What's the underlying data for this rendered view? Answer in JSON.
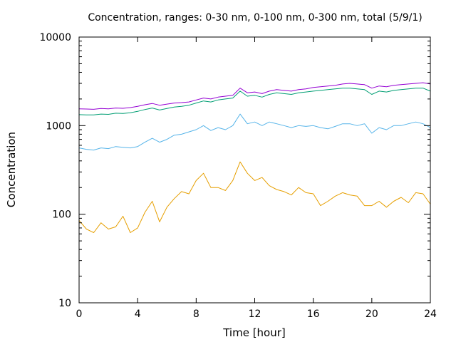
{
  "chart_data": {
    "type": "line",
    "title": "Concentration, ranges: 0-30 nm, 0-100 nm, 0-300 nm, total (5/9/1)",
    "xlabel": "Time [hour]",
    "ylabel": "Concentration",
    "xlim": [
      0,
      24
    ],
    "ylim": [
      10,
      10000
    ],
    "yscale": "log",
    "grid": false,
    "legend": "none",
    "xticks": [
      0,
      4,
      8,
      12,
      16,
      20,
      24
    ],
    "xtick_labels": [
      "0",
      "4",
      "8",
      "12",
      "16",
      "20",
      "24"
    ],
    "yticks": [
      10,
      100,
      1000,
      10000
    ],
    "ytick_labels": [
      "10",
      "100",
      "1000",
      "10000"
    ],
    "series": [
      {
        "color": "#9400d3",
        "x": [
          0,
          0.5,
          1,
          1.5,
          2,
          2.5,
          3,
          3.5,
          4,
          4.5,
          5,
          5.5,
          6,
          6.5,
          7,
          7.5,
          8,
          8.5,
          9,
          9.5,
          10,
          10.5,
          11,
          11.5,
          12,
          12.5,
          13,
          13.5,
          14,
          14.5,
          15,
          15.5,
          16,
          16.5,
          17,
          17.5,
          18,
          18.5,
          19,
          19.5,
          20,
          20.5,
          21,
          21.5,
          22,
          22.5,
          23,
          23.5,
          24
        ],
        "values": [
          1550,
          1540,
          1530,
          1560,
          1550,
          1580,
          1570,
          1600,
          1650,
          1720,
          1780,
          1700,
          1750,
          1800,
          1820,
          1850,
          1950,
          2050,
          2000,
          2100,
          2150,
          2200,
          2650,
          2350,
          2400,
          2300,
          2450,
          2550,
          2500,
          2450,
          2550,
          2600,
          2700,
          2750,
          2800,
          2850,
          2950,
          3000,
          2950,
          2900,
          2650,
          2800,
          2750,
          2850,
          2900,
          2950,
          3000,
          3050,
          2950
        ]
      },
      {
        "color": "#009e73",
        "x": [
          0,
          0.5,
          1,
          1.5,
          2,
          2.5,
          3,
          3.5,
          4,
          4.5,
          5,
          5.5,
          6,
          6.5,
          7,
          7.5,
          8,
          8.5,
          9,
          9.5,
          10,
          10.5,
          11,
          11.5,
          12,
          12.5,
          13,
          13.5,
          14,
          14.5,
          15,
          15.5,
          16,
          16.5,
          17,
          17.5,
          18,
          18.5,
          19,
          19.5,
          20,
          20.5,
          21,
          21.5,
          22,
          22.5,
          23,
          23.5,
          24
        ],
        "values": [
          1330,
          1320,
          1320,
          1350,
          1340,
          1380,
          1370,
          1400,
          1450,
          1520,
          1580,
          1500,
          1560,
          1620,
          1650,
          1700,
          1800,
          1900,
          1850,
          1950,
          2000,
          2050,
          2450,
          2150,
          2200,
          2100,
          2250,
          2350,
          2300,
          2250,
          2350,
          2400,
          2450,
          2500,
          2550,
          2600,
          2650,
          2650,
          2600,
          2550,
          2250,
          2450,
          2400,
          2500,
          2550,
          2600,
          2650,
          2650,
          2450
        ]
      },
      {
        "color": "#56b4e9",
        "x": [
          0,
          0.5,
          1,
          1.5,
          2,
          2.5,
          3,
          3.5,
          4,
          4.5,
          5,
          5.5,
          6,
          6.5,
          7,
          7.5,
          8,
          8.5,
          9,
          9.5,
          10,
          10.5,
          11,
          11.5,
          12,
          12.5,
          13,
          13.5,
          14,
          14.5,
          15,
          15.5,
          16,
          16.5,
          17,
          17.5,
          18,
          18.5,
          19,
          19.5,
          20,
          20.5,
          21,
          21.5,
          22,
          22.5,
          23,
          23.5,
          24
        ],
        "values": [
          560,
          540,
          530,
          560,
          550,
          580,
          570,
          560,
          580,
          650,
          720,
          650,
          700,
          780,
          800,
          850,
          900,
          1000,
          880,
          950,
          900,
          1000,
          1350,
          1050,
          1100,
          1000,
          1100,
          1050,
          1000,
          950,
          1000,
          980,
          1000,
          950,
          920,
          980,
          1050,
          1050,
          1000,
          1050,
          820,
          950,
          900,
          1000,
          1000,
          1050,
          1100,
          1050,
          950
        ]
      },
      {
        "color": "#e69f00",
        "x": [
          0,
          0.5,
          1,
          1.5,
          2,
          2.5,
          3,
          3.5,
          4,
          4.5,
          5,
          5.5,
          6,
          6.5,
          7,
          7.5,
          8,
          8.5,
          9,
          9.5,
          10,
          10.5,
          11,
          11.5,
          12,
          12.5,
          13,
          13.5,
          14,
          14.5,
          15,
          15.5,
          16,
          16.5,
          17,
          17.5,
          18,
          18.5,
          19,
          19.5,
          20,
          20.5,
          21,
          21.5,
          22,
          22.5,
          23,
          23.5,
          24
        ],
        "values": [
          85,
          68,
          62,
          80,
          68,
          72,
          95,
          62,
          70,
          105,
          140,
          82,
          120,
          150,
          180,
          170,
          240,
          290,
          200,
          200,
          185,
          240,
          390,
          290,
          240,
          260,
          210,
          190,
          180,
          165,
          200,
          175,
          170,
          125,
          140,
          160,
          175,
          165,
          160,
          125,
          125,
          140,
          120,
          140,
          155,
          135,
          175,
          170,
          130
        ]
      }
    ]
  }
}
